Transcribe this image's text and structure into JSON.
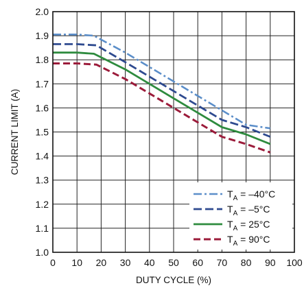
{
  "chart_data": {
    "type": "line",
    "title": "",
    "xlabel": "DUTY CYCLE (%)",
    "ylabel": "CURRENT LIMIT (A)",
    "xlim": [
      0,
      100
    ],
    "ylim": [
      1.0,
      2.0
    ],
    "xticks": [
      0,
      10,
      20,
      30,
      40,
      50,
      60,
      70,
      80,
      90,
      100
    ],
    "yticks": [
      1.0,
      1.1,
      1.2,
      1.3,
      1.4,
      1.5,
      1.6,
      1.7,
      1.8,
      1.9,
      2.0
    ],
    "ytick_labels": [
      "1.0",
      "1.1",
      "1.2",
      "1.3",
      "1.4",
      "1.5",
      "1.6",
      "1.7",
      "1.8",
      "1.9",
      "2.0"
    ],
    "grid": true,
    "legend_position": "bottom-right",
    "series": [
      {
        "name_main": "T",
        "name_sub": "A",
        "name_rest": " = –40°C",
        "color": "#5b8ec9",
        "dash": "dashdot",
        "points": [
          [
            0,
            1.905
          ],
          [
            10,
            1.905
          ],
          [
            17,
            1.9
          ],
          [
            30,
            1.83
          ],
          [
            40,
            1.77
          ],
          [
            50,
            1.71
          ],
          [
            60,
            1.65
          ],
          [
            70,
            1.59
          ],
          [
            80,
            1.53
          ],
          [
            90,
            1.515
          ]
        ]
      },
      {
        "name_main": "T",
        "name_sub": "A",
        "name_rest": " = –5°C",
        "color": "#2e4a8f",
        "dash": "dashed",
        "points": [
          [
            0,
            1.865
          ],
          [
            10,
            1.865
          ],
          [
            18,
            1.86
          ],
          [
            30,
            1.79
          ],
          [
            40,
            1.73
          ],
          [
            50,
            1.67
          ],
          [
            60,
            1.61
          ],
          [
            70,
            1.55
          ],
          [
            80,
            1.52
          ],
          [
            90,
            1.48
          ]
        ]
      },
      {
        "name_main": "T",
        "name_sub": "A",
        "name_rest": " = 25°C",
        "color": "#2e8b3e",
        "dash": "solid",
        "points": [
          [
            0,
            1.83
          ],
          [
            10,
            1.83
          ],
          [
            17,
            1.825
          ],
          [
            30,
            1.76
          ],
          [
            40,
            1.7
          ],
          [
            50,
            1.64
          ],
          [
            60,
            1.58
          ],
          [
            70,
            1.52
          ],
          [
            80,
            1.49
          ],
          [
            90,
            1.45
          ]
        ]
      },
      {
        "name_main": "T",
        "name_sub": "A",
        "name_rest": " = 90°C",
        "color": "#9b1b3a",
        "dash": "dashed-bold",
        "points": [
          [
            0,
            1.785
          ],
          [
            10,
            1.785
          ],
          [
            18,
            1.78
          ],
          [
            30,
            1.72
          ],
          [
            40,
            1.66
          ],
          [
            50,
            1.6
          ],
          [
            60,
            1.54
          ],
          [
            70,
            1.48
          ],
          [
            80,
            1.45
          ],
          [
            90,
            1.415
          ]
        ]
      }
    ]
  }
}
